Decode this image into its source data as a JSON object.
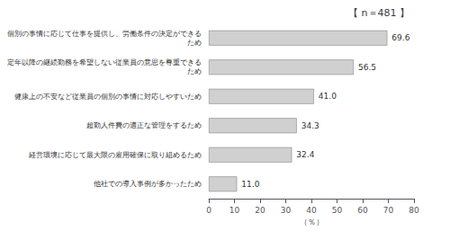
{
  "chart_data": {
    "type": "bar",
    "orientation": "horizontal",
    "title": "【 n＝481 】",
    "categories": [
      "個別の事情に応じて仕事を提供し、労働条件の決定ができる\nため",
      "定年以降の継続勤務を希望しない従業員の意思を尊重できる\nため",
      "健康上の不安など従業員の個別の事情に対応しやすいため",
      "超勤人件費の適正な管理をするため",
      "経営環境に応じて最大限の雇用確保に取り組めるため",
      "他社での導入事例が多かったため"
    ],
    "values": [
      69.6,
      56.5,
      41.0,
      34.3,
      32.4,
      11.0
    ],
    "value_labels": [
      "69.6",
      "56.5",
      "41.0",
      "34.3",
      "32.4",
      "11.0"
    ],
    "data_labels": true,
    "color": "#d0d0d0",
    "xlabel": "（％）",
    "xlim": [
      0,
      80
    ],
    "xticks": [
      0,
      10,
      20,
      30,
      40,
      50,
      60,
      70,
      80
    ],
    "grid": false
  }
}
